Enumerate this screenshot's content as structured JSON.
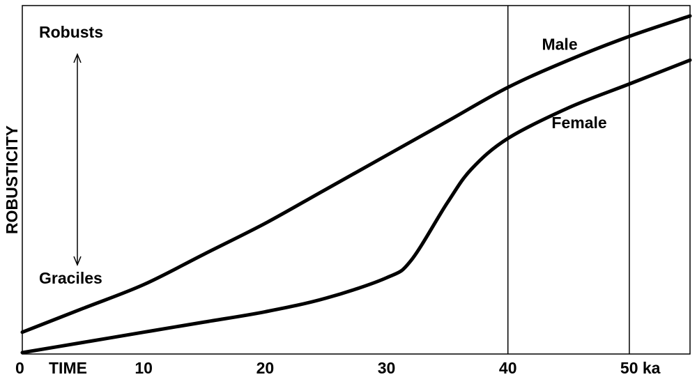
{
  "chart_data": {
    "type": "line",
    "title": "",
    "xlabel": "TIME",
    "ylabel": "ROBUSTICITY",
    "xlim": [
      0,
      55
    ],
    "ylim": [
      0,
      1
    ],
    "x_ticks": [
      {
        "value": 0,
        "label": "0"
      },
      {
        "value": 10,
        "label": "10"
      },
      {
        "value": 20,
        "label": "20"
      },
      {
        "value": 30,
        "label": "30"
      },
      {
        "value": 40,
        "label": "40"
      },
      {
        "value": 50,
        "label": "50 ka"
      }
    ],
    "reference_lines_x": [
      40,
      50
    ],
    "grid": false,
    "legend": "none",
    "y_range_labels": {
      "top": "Robusts",
      "bottom": "Graciles"
    },
    "series": [
      {
        "name": "Male",
        "x": [
          0,
          5,
          10,
          15,
          20,
          25,
          30,
          35,
          40,
          45,
          50,
          55
        ],
        "y": [
          0.06,
          0.13,
          0.2,
          0.29,
          0.38,
          0.48,
          0.58,
          0.68,
          0.78,
          0.86,
          0.93,
          0.99
        ]
      },
      {
        "name": "Female",
        "x": [
          0,
          5,
          10,
          15,
          20,
          25,
          30,
          32,
          35,
          37,
          40,
          45,
          50,
          55
        ],
        "y": [
          0.0,
          0.03,
          0.06,
          0.09,
          0.12,
          0.16,
          0.22,
          0.27,
          0.44,
          0.54,
          0.63,
          0.72,
          0.79,
          0.86
        ]
      }
    ],
    "colors": {
      "line": "#000000",
      "background": "#ffffff"
    }
  }
}
